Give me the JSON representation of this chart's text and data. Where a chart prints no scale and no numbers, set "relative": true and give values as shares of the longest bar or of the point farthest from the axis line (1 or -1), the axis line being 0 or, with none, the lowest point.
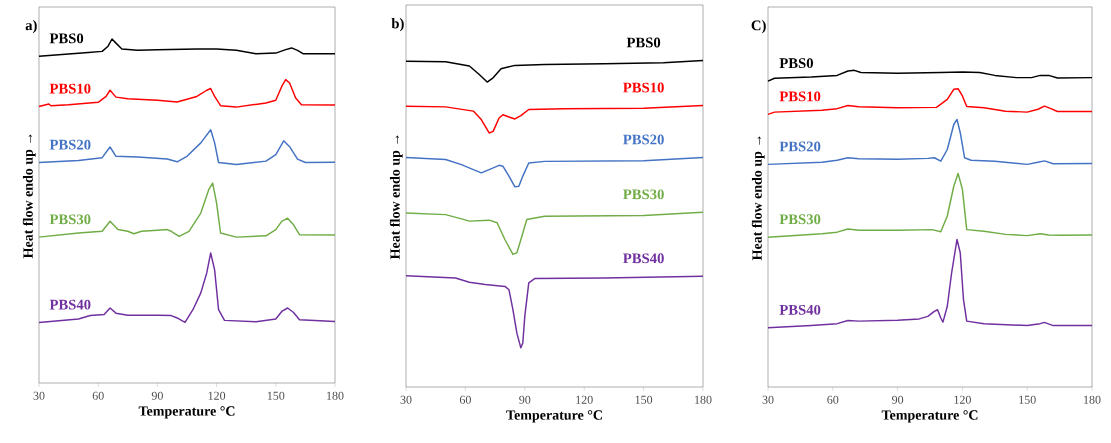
{
  "chart_data": [
    {
      "type": "line",
      "title": "a)",
      "xlabel": "Temperature °C",
      "ylabel": "Heat flow endo up →",
      "xlim": [
        30,
        180
      ],
      "xticks": [
        30,
        60,
        90,
        120,
        150,
        180
      ],
      "relative": true,
      "series": [
        {
          "name": "PBS0",
          "color": "#000000",
          "x": [
            30,
            40,
            55,
            62,
            65,
            67,
            69,
            72,
            80,
            90,
            110,
            120,
            130,
            140,
            150,
            155,
            158,
            161,
            164,
            170,
            180
          ],
          "values": [
            0.95,
            0.954,
            0.961,
            0.964,
            0.979,
            1.0,
            0.988,
            0.971,
            0.967,
            0.969,
            0.971,
            0.971,
            0.967,
            0.957,
            0.959,
            0.969,
            0.974,
            0.967,
            0.957,
            0.957,
            0.957
          ]
        },
        {
          "name": "PBS10",
          "color": "#ff0000",
          "x": [
            30,
            35,
            36,
            45,
            60,
            64,
            66,
            69,
            75,
            90,
            100,
            110,
            115,
            117,
            119,
            122,
            130,
            145,
            150,
            153,
            155,
            157,
            160,
            163,
            180
          ],
          "values": [
            0.804,
            0.811,
            0.806,
            0.809,
            0.816,
            0.833,
            0.851,
            0.831,
            0.826,
            0.822,
            0.817,
            0.833,
            0.851,
            0.856,
            0.833,
            0.806,
            0.802,
            0.814,
            0.822,
            0.862,
            0.882,
            0.872,
            0.829,
            0.809,
            0.808
          ]
        },
        {
          "name": "PBS20",
          "color": "#4472c4",
          "x": [
            30,
            50,
            62,
            66,
            69,
            80,
            95,
            100,
            105,
            112,
            117,
            119,
            121,
            130,
            145,
            150,
            154,
            157,
            161,
            165,
            180
          ],
          "values": [
            0.641,
            0.647,
            0.655,
            0.686,
            0.659,
            0.657,
            0.651,
            0.643,
            0.659,
            0.698,
            0.736,
            0.698,
            0.641,
            0.635,
            0.645,
            0.664,
            0.704,
            0.687,
            0.651,
            0.641,
            0.642
          ]
        },
        {
          "name": "PBS30",
          "color": "#70ad47",
          "x": [
            30,
            50,
            62,
            66,
            70,
            75,
            78,
            82,
            90,
            95,
            97,
            101,
            106,
            112,
            116,
            118,
            120,
            122,
            130,
            145,
            150,
            153,
            156,
            159,
            162,
            180
          ],
          "values": [
            0.424,
            0.436,
            0.441,
            0.47,
            0.446,
            0.441,
            0.434,
            0.441,
            0.444,
            0.446,
            0.441,
            0.426,
            0.441,
            0.494,
            0.562,
            0.581,
            0.523,
            0.436,
            0.424,
            0.428,
            0.446,
            0.47,
            0.479,
            0.46,
            0.431,
            0.43
          ]
        },
        {
          "name": "PBS40",
          "color": "#7030a0",
          "x": [
            30,
            50,
            56,
            63,
            66,
            69,
            75,
            90,
            97,
            100,
            104,
            108,
            112,
            115,
            117,
            119,
            121,
            124,
            140,
            150,
            153,
            156,
            159,
            162,
            180
          ],
          "values": [
            0.176,
            0.186,
            0.196,
            0.199,
            0.218,
            0.203,
            0.197,
            0.197,
            0.196,
            0.189,
            0.176,
            0.213,
            0.262,
            0.32,
            0.378,
            0.329,
            0.213,
            0.182,
            0.178,
            0.186,
            0.208,
            0.218,
            0.205,
            0.184,
            0.179
          ]
        }
      ]
    },
    {
      "type": "line",
      "title": "b)",
      "xlabel": "Temperature °C",
      "ylabel": "Heat flow endo up →",
      "xlim": [
        30,
        180
      ],
      "xticks": [
        30,
        60,
        90,
        120,
        150,
        180
      ],
      "relative": true,
      "series": [
        {
          "name": "PBS0",
          "color": "#000000",
          "x": [
            30,
            50,
            62,
            67,
            71,
            74,
            78,
            85,
            100,
            130,
            160,
            180
          ],
          "values": [
            0.998,
            0.996,
            0.983,
            0.957,
            0.934,
            0.947,
            0.975,
            0.985,
            0.988,
            0.99,
            0.993,
            1.0
          ]
        },
        {
          "name": "PBS10",
          "color": "#ff0000",
          "x": [
            30,
            50,
            64,
            68,
            72,
            74,
            77,
            79,
            82,
            85,
            88,
            92,
            110,
            150,
            180
          ],
          "values": [
            0.86,
            0.858,
            0.845,
            0.819,
            0.778,
            0.783,
            0.824,
            0.834,
            0.827,
            0.821,
            0.831,
            0.85,
            0.852,
            0.854,
            0.862
          ]
        },
        {
          "name": "PBS20",
          "color": "#4472c4",
          "x": [
            30,
            50,
            58,
            64,
            68,
            72,
            77,
            79,
            82,
            85,
            87,
            89,
            92,
            100,
            150,
            180
          ],
          "values": [
            0.703,
            0.697,
            0.681,
            0.666,
            0.656,
            0.666,
            0.679,
            0.676,
            0.646,
            0.613,
            0.615,
            0.646,
            0.686,
            0.691,
            0.693,
            0.703
          ]
        },
        {
          "name": "PBS30",
          "color": "#70ad47",
          "x": [
            30,
            50,
            58,
            62,
            72,
            76,
            80,
            84,
            86,
            88,
            91,
            100,
            150,
            180
          ],
          "values": [
            0.533,
            0.528,
            0.515,
            0.508,
            0.511,
            0.503,
            0.451,
            0.406,
            0.411,
            0.451,
            0.513,
            0.523,
            0.525,
            0.535
          ]
        },
        {
          "name": "PBS40",
          "color": "#7030a0",
          "x": [
            30,
            55,
            62,
            70,
            80,
            82,
            84,
            86,
            88,
            89,
            90,
            92,
            95,
            130,
            180
          ],
          "values": [
            0.341,
            0.334,
            0.321,
            0.314,
            0.308,
            0.298,
            0.237,
            0.165,
            0.12,
            0.135,
            0.217,
            0.319,
            0.332,
            0.334,
            0.339
          ]
        }
      ]
    },
    {
      "type": "line",
      "title": "C)",
      "xlabel": "Temperature °C",
      "ylabel": "Heat flow endo up →",
      "xlim": [
        30,
        180
      ],
      "xticks": [
        30,
        60,
        90,
        120,
        150,
        180
      ],
      "relative": true,
      "series": [
        {
          "name": "PBS0",
          "color": "#000000",
          "x": [
            30,
            33,
            50,
            62,
            67,
            70,
            73,
            90,
            110,
            120,
            128,
            135,
            145,
            152,
            156,
            160,
            164,
            180
          ],
          "values": [
            0.966,
            0.975,
            0.979,
            0.984,
            0.998,
            1.0,
            0.993,
            0.991,
            0.993,
            0.995,
            0.993,
            0.984,
            0.977,
            0.977,
            0.984,
            0.984,
            0.976,
            0.977
          ]
        },
        {
          "name": "PBS10",
          "color": "#ff0000",
          "x": [
            30,
            33,
            55,
            62,
            67,
            72,
            90,
            108,
            113,
            116,
            118,
            120,
            122,
            130,
            140,
            150,
            155,
            158,
            161,
            164,
            180
          ],
          "values": [
            0.861,
            0.868,
            0.874,
            0.879,
            0.889,
            0.885,
            0.882,
            0.883,
            0.908,
            0.94,
            0.942,
            0.919,
            0.886,
            0.882,
            0.871,
            0.868,
            0.877,
            0.887,
            0.879,
            0.87,
            0.87
          ]
        },
        {
          "name": "PBS20",
          "color": "#4472c4",
          "x": [
            30,
            55,
            62,
            67,
            72,
            90,
            104,
            107,
            110,
            113,
            116,
            117.5,
            119,
            121,
            124,
            135,
            150,
            155,
            158,
            162,
            180
          ],
          "values": [
            0.703,
            0.71,
            0.716,
            0.724,
            0.721,
            0.719,
            0.722,
            0.724,
            0.713,
            0.75,
            0.829,
            0.845,
            0.803,
            0.724,
            0.716,
            0.713,
            0.703,
            0.71,
            0.714,
            0.705,
            0.706
          ]
        },
        {
          "name": "PBS30",
          "color": "#70ad47",
          "x": [
            30,
            55,
            62,
            67,
            72,
            90,
            106,
            110,
            113,
            116,
            118,
            120,
            122,
            130,
            140,
            150,
            156,
            160,
            165,
            180
          ],
          "values": [
            0.473,
            0.484,
            0.489,
            0.499,
            0.495,
            0.495,
            0.497,
            0.49,
            0.54,
            0.634,
            0.674,
            0.624,
            0.497,
            0.492,
            0.482,
            0.478,
            0.484,
            0.48,
            0.479,
            0.48
          ]
        },
        {
          "name": "PBS40",
          "color": "#7030a0",
          "x": [
            30,
            50,
            62,
            67,
            72,
            90,
            100,
            104,
            107,
            108.5,
            110,
            111,
            113,
            115,
            117.5,
            119,
            120.5,
            122,
            130,
            150,
            156,
            158,
            162,
            180
          ],
          "values": [
            0.187,
            0.194,
            0.2,
            0.21,
            0.208,
            0.211,
            0.215,
            0.223,
            0.239,
            0.244,
            0.218,
            0.205,
            0.255,
            0.36,
            0.466,
            0.424,
            0.276,
            0.208,
            0.2,
            0.194,
            0.2,
            0.204,
            0.194,
            0.194
          ]
        }
      ]
    }
  ]
}
